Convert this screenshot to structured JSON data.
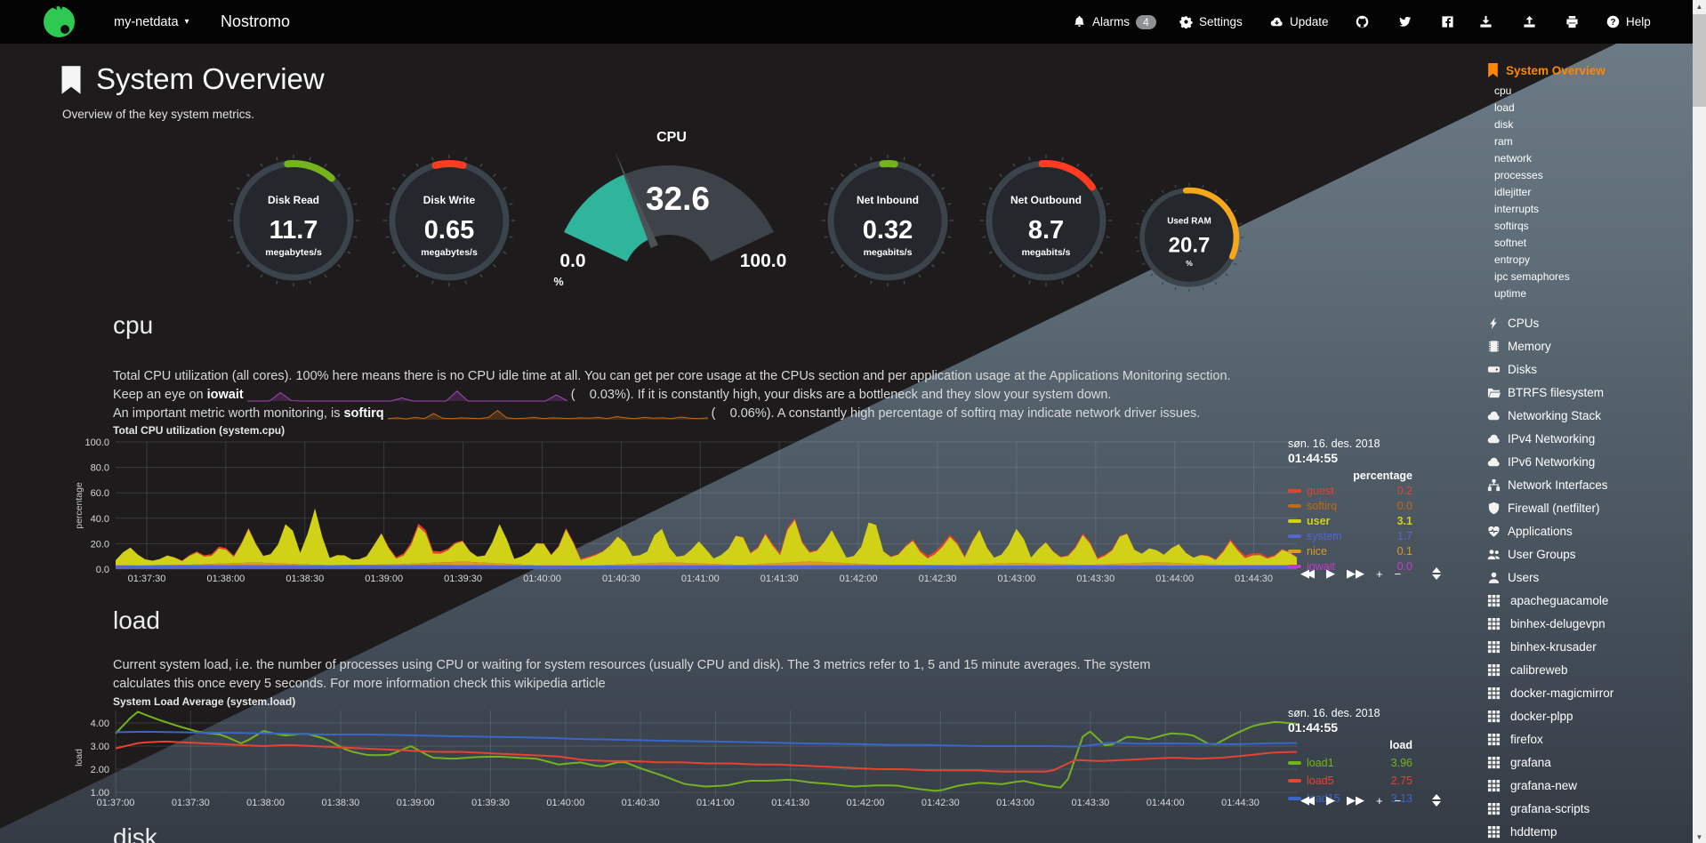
{
  "navbar": {
    "host": "my-netdata",
    "brand": "Nostromo",
    "alarms_label": "Alarms",
    "alarms_count": "4",
    "settings_label": "Settings",
    "update_label": "Update",
    "help_label": "Help"
  },
  "header": {
    "title": "System Overview",
    "subtitle": "Overview of the key system metrics."
  },
  "gauges": {
    "circles": [
      {
        "id": "disk-read",
        "label": "Disk Read",
        "value": "11.7",
        "unit": "megabytes/s",
        "color": "#74B31C",
        "arc_start": -6,
        "arc_sweep": 48
      },
      {
        "id": "disk-write",
        "label": "Disk Write",
        "value": "0.65",
        "unit": "megabytes/s",
        "color": "#FF3C1F",
        "arc_start": -14,
        "arc_sweep": 28
      },
      {
        "id": "net-inbound",
        "label": "Net Inbound",
        "value": "0.32",
        "unit": "megabits/s",
        "color": "#74B31C",
        "arc_start": -5,
        "arc_sweep": 12
      },
      {
        "id": "net-outbound",
        "label": "Net Outbound",
        "value": "8.7",
        "unit": "megabits/s",
        "color": "#FF3C1F",
        "arc_start": -4,
        "arc_sweep": 58
      },
      {
        "id": "used-ram",
        "label": "Used RAM",
        "value": "20.7",
        "unit": "%",
        "color": "#F6A71B",
        "arc_start": -4,
        "arc_sweep": 118
      }
    ],
    "speedometer": {
      "title": "CPU",
      "value": "32.6",
      "min": "0.0",
      "max": "100.0",
      "unit": "%",
      "fraction": 0.326,
      "fill_color": "#2EB59B"
    }
  },
  "cpu_section": {
    "heading": "cpu",
    "desc1": "Total CPU utilization (all cores). 100% here means there is no CPU idle time at all. You can get per core usage at the CPUs section and per application usage at the Applications Monitoring section.",
    "desc2_prefix": "Keep an eye on ",
    "desc2_metric": "iowait",
    "desc2_suffix": "(    0.03%). If it is constantly high, your disks are a bottleneck and they slow your system down.",
    "desc3_prefix": "An important metric worth monitoring, is ",
    "desc3_metric": "softirq",
    "desc3_suffix": "(    0.06%). A constantly high percentage of softirq may indicate network driver issues.",
    "spark_iowait": {
      "color": "#A347BA",
      "values": [
        0,
        0,
        0,
        2.2,
        0.1,
        0,
        0,
        0,
        0,
        0,
        0,
        0,
        0,
        0,
        0.8,
        0,
        0,
        0,
        0,
        2.6,
        0,
        0,
        0,
        0,
        0,
        0,
        0,
        0,
        1.6,
        0
      ]
    },
    "spark_softirq": {
      "color": "#C96A12",
      "values": [
        0.3,
        0.5,
        0.2,
        0.6,
        0.3,
        1.6,
        0.4,
        0.3,
        0.5,
        0.4,
        0.3,
        0.6,
        2.4,
        0.5,
        0.3,
        0.4,
        0.6,
        0.3,
        0.5,
        0.4,
        0.3,
        0.5,
        0.4,
        0.6,
        0.3,
        0.8,
        0.5,
        0.3,
        0.6,
        0.4,
        0.5,
        0.3,
        0.7,
        0.4,
        0.3,
        0.5
      ]
    }
  },
  "load_section": {
    "heading": "load",
    "desc": "Current system load, i.e. the number of processes using CPU or waiting for system resources (usually CPU and disk). The 3 metrics refer to 1, 5 and 15 minute averages. The system calculates this once every 5 seconds. For more information check this wikipedia article"
  },
  "disk_section": {
    "heading": "disk"
  },
  "chart_toolbar": [
    "rewind",
    "play",
    "fast-forward",
    "zoom-in",
    "zoom-out",
    "resize"
  ],
  "chart_data": [
    {
      "id": "cpu",
      "type": "area",
      "title": "Total CPU utilization (system.cpu)",
      "ylabel": "percentage",
      "units": "percentage",
      "date": "søn. 16. des. 2018",
      "time": "01:44:55",
      "ylim": [
        0,
        100
      ],
      "yticks": [
        "100.0",
        "80.0",
        "60.0",
        "40.0",
        "20.0",
        "0.0"
      ],
      "xticks": [
        "01:37:30",
        "01:38:00",
        "01:38:30",
        "01:39:00",
        "01:39:30",
        "01:40:00",
        "01:40:30",
        "01:41:00",
        "01:41:30",
        "01:42:00",
        "01:42:30",
        "01:43:00",
        "01:43:30",
        "01:44:00",
        "01:44:30"
      ],
      "legend": [
        {
          "name": "guest",
          "value": "0.2",
          "color": "#E8402F"
        },
        {
          "name": "softirq",
          "value": "0.0",
          "color": "#C06A12"
        },
        {
          "name": "user",
          "value": "3.1",
          "color": "#D1D117",
          "bold": true
        },
        {
          "name": "system",
          "value": "1.7",
          "color": "#5466D0"
        },
        {
          "name": "nice",
          "value": "0.1",
          "color": "#DB9B20"
        },
        {
          "name": "iowait",
          "value": "0.0",
          "color": "#C23BC7"
        }
      ],
      "series": [
        {
          "name": "iowait",
          "color": "#C23BC7",
          "values": [
            0.1,
            0.1,
            0.2,
            0.1,
            0.1,
            0.1,
            0.2,
            0.1,
            0.1,
            0.1
          ]
        },
        {
          "name": "system",
          "color": "#5466D0",
          "values": [
            2.6,
            3.0,
            2.7,
            3.1,
            2.6,
            2.9,
            2.8,
            3.0,
            2.6,
            2.9,
            2.7,
            2.8
          ]
        },
        {
          "name": "nice",
          "color": "#DB9B20",
          "values": [
            0.3,
            0.4,
            2.2,
            0.3,
            0.5,
            2.8,
            0.4,
            0.3,
            2.4,
            0.4,
            3.1,
            0.3,
            0.5,
            2.0,
            0.3,
            2.6,
            0.4,
            0.3
          ]
        },
        {
          "name": "user",
          "color": "#D1D117",
          "values": [
            4,
            15,
            5,
            3,
            8,
            3,
            10,
            4,
            14,
            4,
            27,
            5,
            8,
            37,
            6,
            45,
            5,
            9,
            3,
            7,
            25,
            4,
            8,
            34,
            5,
            9,
            18,
            4,
            6,
            33,
            4,
            8,
            21,
            5,
            30,
            4,
            7,
            12,
            24,
            5,
            8,
            31,
            4,
            6,
            18,
            4,
            9,
            28,
            5,
            24,
            4,
            39,
            6,
            9,
            26,
            4,
            7,
            42,
            5,
            8,
            20,
            4,
            10,
            24,
            5,
            29,
            4,
            8,
            30,
            4,
            18,
            5,
            7,
            26,
            4,
            9,
            28,
            5,
            12,
            6,
            16,
            4,
            8,
            3,
            19,
            5,
            9,
            4,
            13,
            6
          ]
        },
        {
          "name": "guest",
          "color": "#E8402F",
          "values": [
            0,
            0,
            1.5,
            0,
            0,
            0,
            2.5,
            0,
            0,
            1.2,
            0,
            0,
            0,
            1.8,
            0,
            0,
            2.2,
            0,
            0,
            1.4,
            0,
            0,
            1.9,
            0.2
          ]
        }
      ]
    },
    {
      "id": "load",
      "type": "line",
      "title": "System Load Average (system.load)",
      "ylabel": "load",
      "units": "load",
      "date": "søn. 16. des. 2018",
      "time": "01:44:55",
      "ylim": [
        1,
        4.6
      ],
      "yticks": [
        "4.00",
        "3.00",
        "2.00",
        "1.00"
      ],
      "xticks": [
        "01:37:00",
        "01:37:30",
        "01:38:00",
        "01:38:30",
        "01:39:00",
        "01:39:30",
        "01:40:00",
        "01:40:30",
        "01:41:00",
        "01:41:30",
        "01:42:00",
        "01:42:30",
        "01:43:00",
        "01:43:30",
        "01:44:00",
        "01:44:30"
      ],
      "legend": [
        {
          "name": "load1",
          "value": "3.96",
          "color": "#74B21E"
        },
        {
          "name": "load5",
          "value": "2.75",
          "color": "#E8432E"
        },
        {
          "name": "load15",
          "value": "3.13",
          "color": "#3A66CC"
        }
      ],
      "series": [
        {
          "name": "load1",
          "color": "#74B21E",
          "values": [
            3.55,
            4.5,
            4.15,
            3.85,
            3.6,
            3.5,
            3.1,
            3.65,
            3.45,
            3.55,
            3.3,
            2.8,
            2.6,
            2.62,
            3.0,
            2.5,
            2.45,
            2.52,
            2.55,
            2.5,
            2.45,
            2.2,
            2.3,
            2.1,
            2.35,
            2.0,
            1.7,
            1.35,
            1.25,
            1.3,
            1.5,
            1.5,
            1.55,
            1.42,
            1.35,
            1.25,
            1.3,
            1.3,
            1.15,
            1.05,
            1.3,
            1.42,
            1.35,
            1.5,
            1.3,
            1.18,
            3.8,
            2.95,
            3.42,
            3.3,
            3.55,
            3.5,
            3.0,
            3.5,
            3.9,
            4.05,
            3.96
          ]
        },
        {
          "name": "load5",
          "color": "#E8432E",
          "values": [
            2.9,
            3.15,
            3.2,
            3.15,
            3.1,
            3.05,
            3.0,
            3.05,
            3.0,
            2.95,
            2.9,
            2.85,
            2.8,
            2.75,
            2.75,
            2.7,
            2.65,
            2.6,
            2.55,
            2.4,
            2.35,
            2.35,
            2.3,
            2.3,
            2.25,
            2.25,
            2.2,
            2.2,
            2.15,
            2.1,
            2.05,
            2.0,
            2.0,
            1.95,
            1.95,
            1.95,
            1.9,
            1.9,
            1.9,
            2.4,
            2.35,
            2.4,
            2.45,
            2.5,
            2.45,
            2.5,
            2.6,
            2.72,
            2.75
          ]
        },
        {
          "name": "load15",
          "color": "#3A66CC",
          "values": [
            3.6,
            3.62,
            3.6,
            3.58,
            3.57,
            3.55,
            3.52,
            3.5,
            3.5,
            3.48,
            3.45,
            3.42,
            3.4,
            3.38,
            3.35,
            3.3,
            3.28,
            3.25,
            3.22,
            3.2,
            3.18,
            3.15,
            3.12,
            3.1,
            3.08,
            3.05,
            3.05,
            3.02,
            3.0,
            3.0,
            3.0,
            2.98,
            3.15,
            3.1,
            3.12,
            3.1,
            3.08,
            3.12,
            3.13
          ]
        }
      ]
    }
  ],
  "sidebar": {
    "active": "System Overview",
    "subitems": [
      "cpu",
      "load",
      "disk",
      "ram",
      "network",
      "processes",
      "idlejitter",
      "interrupts",
      "softirqs",
      "softnet",
      "entropy",
      "ipc semaphores",
      "uptime"
    ],
    "sections": [
      {
        "icon": "bolt-icon",
        "label": "CPUs"
      },
      {
        "icon": "memory-icon",
        "label": "Memory"
      },
      {
        "icon": "disk-icon",
        "label": "Disks"
      },
      {
        "icon": "folder-icon",
        "label": "BTRFS filesystem"
      },
      {
        "icon": "cloud-icon",
        "label": "Networking Stack"
      },
      {
        "icon": "cloud-icon",
        "label": "IPv4 Networking"
      },
      {
        "icon": "cloud-icon",
        "label": "IPv6 Networking"
      },
      {
        "icon": "sitemap-icon",
        "label": "Network Interfaces"
      },
      {
        "icon": "shield-icon",
        "label": "Firewall (netfilter)"
      },
      {
        "icon": "heartbeat-icon",
        "label": "Applications"
      },
      {
        "icon": "users-icon",
        "label": "User Groups"
      },
      {
        "icon": "user-icon",
        "label": "Users"
      },
      {
        "icon": "grid-icon",
        "label": "apacheguacamole",
        "app": true
      },
      {
        "icon": "grid-icon",
        "label": "binhex-delugevpn",
        "app": true
      },
      {
        "icon": "grid-icon",
        "label": "binhex-krusader",
        "app": true
      },
      {
        "icon": "grid-icon",
        "label": "calibreweb",
        "app": true
      },
      {
        "icon": "grid-icon",
        "label": "docker-magicmirror",
        "app": true
      },
      {
        "icon": "grid-icon",
        "label": "docker-plpp",
        "app": true
      },
      {
        "icon": "grid-icon",
        "label": "firefox",
        "app": true
      },
      {
        "icon": "grid-icon",
        "label": "grafana",
        "app": true
      },
      {
        "icon": "grid-icon",
        "label": "grafana-new",
        "app": true
      },
      {
        "icon": "grid-icon",
        "label": "grafana-scripts",
        "app": true
      },
      {
        "icon": "grid-icon",
        "label": "hddtemp",
        "app": true
      }
    ]
  }
}
